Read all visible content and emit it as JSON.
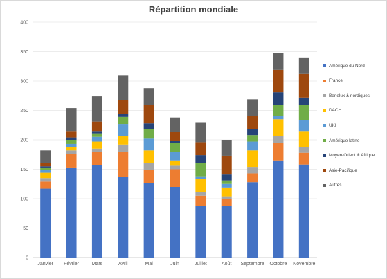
{
  "chart_data": {
    "type": "bar",
    "stacked": true,
    "title": "Répartition mondiale",
    "xlabel": "",
    "ylabel": "",
    "ylim": [
      0,
      400
    ],
    "yticks": [
      "0",
      "50",
      "100",
      "150",
      "200",
      "250",
      "300",
      "350",
      "400"
    ],
    "grid": true,
    "legend_position": "right",
    "categories": [
      "Janvier",
      "Février",
      "Mars",
      "Avril",
      "Mai",
      "Juin",
      "Juillet",
      "Août",
      "Septembre",
      "Octobre",
      "Novembre"
    ],
    "series": [
      {
        "name": "Amérique du Nord",
        "color": "#4472c4",
        "values": [
          117,
          153,
          157,
          137,
          127,
          120,
          88,
          88,
          128,
          165,
          158
        ]
      },
      {
        "name": "France",
        "color": "#ed7d31",
        "values": [
          12,
          23,
          23,
          43,
          22,
          30,
          17,
          12,
          15,
          30,
          20
        ]
      },
      {
        "name": "Benelux & nordiques",
        "color": "#a5a5a5",
        "values": [
          6,
          6,
          5,
          12,
          11,
          6,
          6,
          4,
          11,
          11,
          10
        ]
      },
      {
        "name": "DACH",
        "color": "#ffc000",
        "values": [
          9,
          6,
          12,
          15,
          22,
          9,
          22,
          15,
          28,
          29,
          27
        ]
      },
      {
        "name": "UKI",
        "color": "#5b9bd5",
        "values": [
          5,
          5,
          8,
          20,
          20,
          14,
          5,
          6,
          15,
          5,
          19
        ]
      },
      {
        "name": "Amérique latine",
        "color": "#70ad47",
        "values": [
          4,
          7,
          6,
          12,
          16,
          16,
          22,
          6,
          11,
          20,
          25
        ]
      },
      {
        "name": "Moyen-Orient & Afrique",
        "color": "#264478",
        "values": [
          2,
          4,
          4,
          5,
          10,
          3,
          14,
          10,
          10,
          21,
          13
        ]
      },
      {
        "name": "Asie-Pacifique",
        "color": "#9e480e",
        "values": [
          6,
          11,
          16,
          24,
          31,
          16,
          22,
          32,
          23,
          38,
          40
        ]
      },
      {
        "name": "Autres",
        "color": "#636363",
        "values": [
          21,
          39,
          43,
          41,
          29,
          24,
          34,
          27,
          28,
          29,
          27
        ]
      }
    ]
  }
}
